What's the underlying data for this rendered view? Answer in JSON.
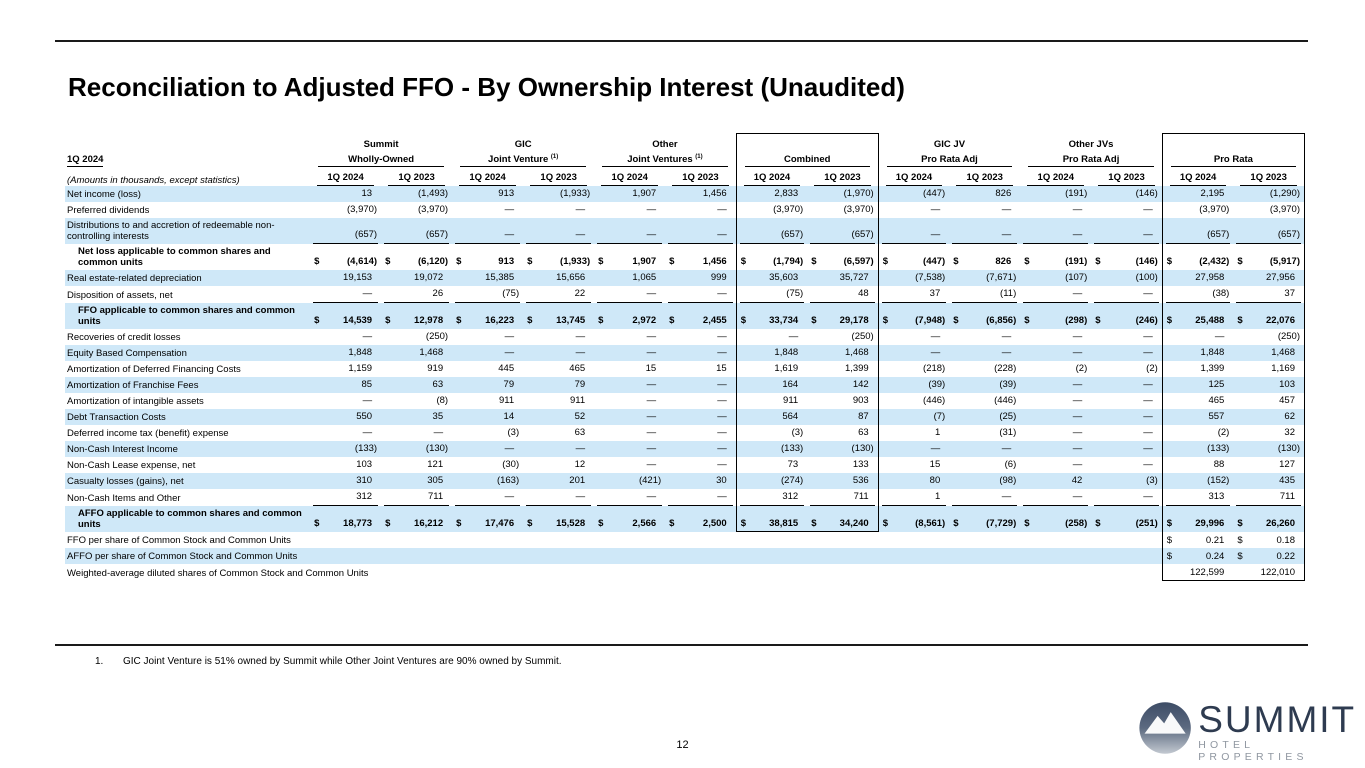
{
  "page": {
    "title": "Reconciliation to Adjusted FFO - By Ownership Interest (Unaudited)",
    "page_number": "12",
    "footnote_number": "1.",
    "footnote_text": "GIC Joint Venture is 51% owned by Summit while Other Joint Ventures are 90% owned by Summit.",
    "logo": {
      "name": "SUMMIT",
      "subtitle": "HOTEL PROPERTIES",
      "navy": "#2e3b50",
      "grey": "#9097a1"
    },
    "colors": {
      "stripe": "#cfe8f8"
    }
  },
  "table": {
    "left_header": "1Q 2024",
    "left_subheader": "(Amounts in thousands, except statistics)",
    "groups": [
      {
        "line1": "Summit",
        "line2": "Wholly-Owned",
        "sup": "",
        "boxed": false
      },
      {
        "line1": "GIC",
        "line2": "Joint Venture ",
        "sup": "(1)",
        "boxed": false
      },
      {
        "line1": "Other",
        "line2": "Joint Ventures ",
        "sup": "(1)",
        "boxed": false
      },
      {
        "line1": "",
        "line2": "Combined",
        "sup": "",
        "boxed": true
      },
      {
        "line1": "GIC JV",
        "line2": "Pro Rata Adj",
        "sup": "",
        "boxed": false
      },
      {
        "line1": "Other JVs",
        "line2": "Pro Rata Adj",
        "sup": "",
        "boxed": false
      },
      {
        "line1": "",
        "line2": "Pro Rata",
        "sup": "",
        "boxed": true
      }
    ],
    "col_headers": [
      "1Q 2024",
      "1Q 2023"
    ],
    "rows": [
      {
        "label": "Net income (loss)",
        "s": true,
        "v": [
          "13",
          "(1,493)",
          "913",
          "(1,933)",
          "1,907",
          "1,456",
          "2,833",
          "(1,970)",
          "(447)",
          "826",
          "(191)",
          "(146)",
          "2,195",
          "(1,290)"
        ]
      },
      {
        "label": "Preferred dividends",
        "v": [
          "(3,970)",
          "(3,970)",
          "—",
          "—",
          "—",
          "—",
          "(3,970)",
          "(3,970)",
          "—",
          "—",
          "—",
          "—",
          "(3,970)",
          "(3,970)"
        ]
      },
      {
        "label": "Distributions to and accretion of redeemable non-controlling interests",
        "s": true,
        "u": true,
        "v": [
          "(657)",
          "(657)",
          "—",
          "—",
          "—",
          "—",
          "(657)",
          "(657)",
          "—",
          "—",
          "—",
          "—",
          "(657)",
          "(657)"
        ]
      },
      {
        "label": "Net loss applicable to common shares and common units",
        "b": true,
        "d": true,
        "v": [
          "(4,614)",
          "(6,120)",
          "913",
          "(1,933)",
          "1,907",
          "1,456",
          "(1,794)",
          "(6,597)",
          "(447)",
          "826",
          "(191)",
          "(146)",
          "(2,432)",
          "(5,917)"
        ]
      },
      {
        "label": "Real estate-related depreciation",
        "s": true,
        "v": [
          "19,153",
          "19,072",
          "15,385",
          "15,656",
          "1,065",
          "999",
          "35,603",
          "35,727",
          "(7,538)",
          "(7,671)",
          "(107)",
          "(100)",
          "27,958",
          "27,956"
        ]
      },
      {
        "label": "Disposition of assets, net",
        "u": true,
        "v": [
          "—",
          "26",
          "(75)",
          "22",
          "—",
          "—",
          "(75)",
          "48",
          "37",
          "(11)",
          "—",
          "—",
          "(38)",
          "37"
        ]
      },
      {
        "label": "FFO applicable to common shares and common units",
        "b": true,
        "d": true,
        "s": true,
        "v": [
          "14,539",
          "12,978",
          "16,223",
          "13,745",
          "2,972",
          "2,455",
          "33,734",
          "29,178",
          "(7,948)",
          "(6,856)",
          "(298)",
          "(246)",
          "25,488",
          "22,076"
        ]
      },
      {
        "label": "Recoveries of credit losses",
        "v": [
          "—",
          "(250)",
          "—",
          "—",
          "—",
          "—",
          "—",
          "(250)",
          "—",
          "—",
          "—",
          "—",
          "—",
          "(250)"
        ]
      },
      {
        "label": "Equity Based Compensation",
        "s": true,
        "v": [
          "1,848",
          "1,468",
          "—",
          "—",
          "—",
          "—",
          "1,848",
          "1,468",
          "—",
          "—",
          "—",
          "—",
          "1,848",
          "1,468"
        ]
      },
      {
        "label": "Amortization of Deferred Financing Costs",
        "v": [
          "1,159",
          "919",
          "445",
          "465",
          "15",
          "15",
          "1,619",
          "1,399",
          "(218)",
          "(228)",
          "(2)",
          "(2)",
          "1,399",
          "1,169"
        ]
      },
      {
        "label": "Amortization of Franchise Fees",
        "s": true,
        "v": [
          "85",
          "63",
          "79",
          "79",
          "—",
          "—",
          "164",
          "142",
          "(39)",
          "(39)",
          "—",
          "—",
          "125",
          "103"
        ]
      },
      {
        "label": "Amortization of intangible assets",
        "v": [
          "—",
          "(8)",
          "911",
          "911",
          "—",
          "—",
          "911",
          "903",
          "(446)",
          "(446)",
          "—",
          "—",
          "465",
          "457"
        ]
      },
      {
        "label": "Debt Transaction Costs",
        "s": true,
        "v": [
          "550",
          "35",
          "14",
          "52",
          "—",
          "—",
          "564",
          "87",
          "(7)",
          "(25)",
          "—",
          "—",
          "557",
          "62"
        ]
      },
      {
        "label": "Deferred income tax (benefit) expense",
        "v": [
          "—",
          "—",
          "(3)",
          "63",
          "—",
          "—",
          "(3)",
          "63",
          "1",
          "(31)",
          "—",
          "—",
          "(2)",
          "32"
        ]
      },
      {
        "label": "Non-Cash Interest Income",
        "s": true,
        "v": [
          "(133)",
          "(130)",
          "—",
          "—",
          "—",
          "—",
          "(133)",
          "(130)",
          "—",
          "—",
          "—",
          "—",
          "(133)",
          "(130)"
        ]
      },
      {
        "label": "Non-Cash Lease expense, net",
        "v": [
          "103",
          "121",
          "(30)",
          "12",
          "—",
          "—",
          "73",
          "133",
          "15",
          "(6)",
          "—",
          "—",
          "88",
          "127"
        ]
      },
      {
        "label": "Casualty losses (gains), net",
        "s": true,
        "v": [
          "310",
          "305",
          "(163)",
          "201",
          "(421)",
          "30",
          "(274)",
          "536",
          "80",
          "(98)",
          "42",
          "(3)",
          "(152)",
          "435"
        ]
      },
      {
        "label": "Non-Cash Items and Other",
        "u": true,
        "v": [
          "312",
          "711",
          "—",
          "—",
          "—",
          "—",
          "312",
          "711",
          "1",
          "—",
          "—",
          "—",
          "313",
          "711"
        ]
      },
      {
        "label": "AFFO applicable to common shares and common units",
        "b": true,
        "d": true,
        "s": true,
        "v": [
          "18,773",
          "16,212",
          "17,476",
          "15,528",
          "2,566",
          "2,500",
          "38,815",
          "34,240",
          "(8,561)",
          "(7,729)",
          "(258)",
          "(251)",
          "29,996",
          "26,260"
        ]
      },
      {
        "label": "FFO per share of Common Stock and Common Units",
        "nw": true,
        "dp": true,
        "v": [
          "",
          "",
          "",
          "",
          "",
          "",
          "",
          "",
          "",
          "",
          "",
          "",
          "0.21",
          "0.18"
        ]
      },
      {
        "label": "AFFO per share of Common Stock and Common Units",
        "s": true,
        "nw": true,
        "dp": true,
        "v": [
          "",
          "",
          "",
          "",
          "",
          "",
          "",
          "",
          "",
          "",
          "",
          "",
          "0.24",
          "0.22"
        ]
      },
      {
        "label": "Weighted-average diluted shares of Common Stock and Common Units",
        "nw": true,
        "v": [
          "",
          "",
          "",
          "",
          "",
          "",
          "",
          "",
          "",
          "",
          "",
          "",
          "122,599",
          "122,010"
        ]
      }
    ]
  }
}
